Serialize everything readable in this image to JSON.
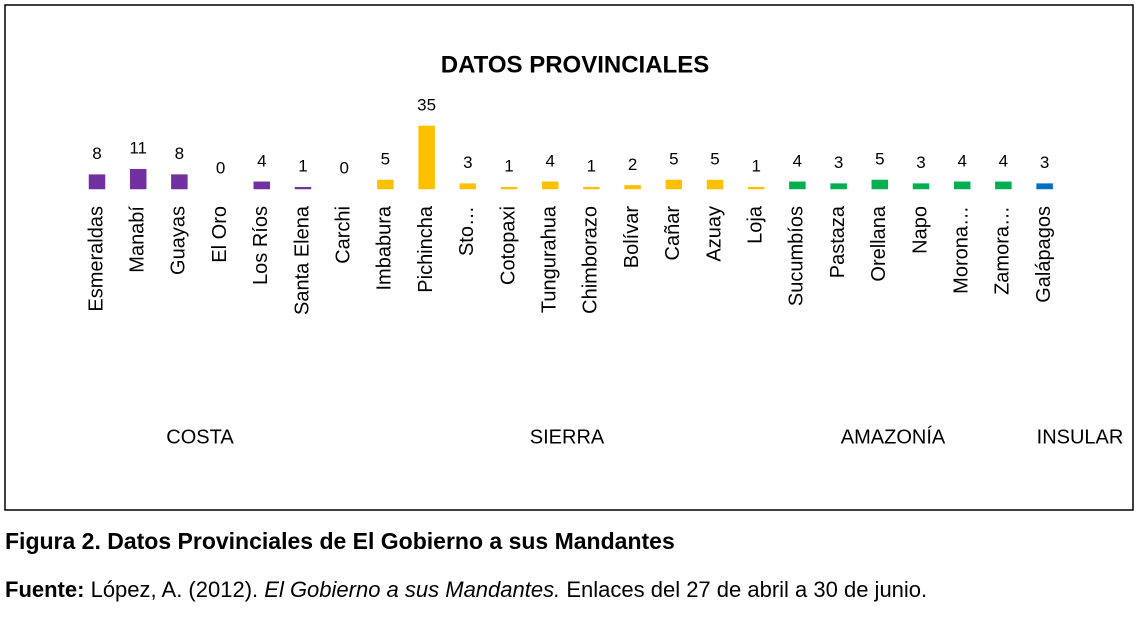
{
  "chart_data": {
    "type": "bar",
    "title": "DATOS PROVINCIALES",
    "categories": [
      "Esmeraldas",
      "Manabí",
      "Guayas",
      "El Oro",
      "Los Ríos",
      "Santa Elena",
      "Carchi",
      "Imbabura",
      "Pichincha",
      "Sto…",
      "Cotopaxi",
      "Tungurahua",
      "Chimborazo",
      "Bolívar",
      "Cañar",
      "Azuay",
      "Loja",
      "Sucumbíos",
      "Pastaza",
      "Orellana",
      "Napo",
      "Morona…",
      "Zamora…",
      "Galápagos"
    ],
    "values": [
      8,
      11,
      8,
      0,
      4,
      1,
      0,
      5,
      35,
      3,
      1,
      4,
      1,
      2,
      5,
      5,
      1,
      4,
      3,
      5,
      3,
      4,
      4,
      3
    ],
    "colors": [
      "#7030a0",
      "#7030a0",
      "#7030a0",
      "#7030a0",
      "#7030a0",
      "#7030a0",
      "#ffc000",
      "#ffc000",
      "#ffc000",
      "#ffc000",
      "#ffc000",
      "#ffc000",
      "#ffc000",
      "#ffc000",
      "#ffc000",
      "#ffc000",
      "#ffc000",
      "#00b050",
      "#00b050",
      "#00b050",
      "#00b050",
      "#00b050",
      "#00b050",
      "#0070c0"
    ],
    "groups": [
      "COSTA",
      "SIERRA",
      "AMAZONÍA",
      "INSULAR"
    ]
  },
  "caption": {
    "figure": "Figura 2. Datos Provinciales de El Gobierno a sus Mandantes",
    "source_label": "Fuente:",
    "source_text": "López, A. (2012).",
    "source_title": "El Gobierno a sus Mandantes.",
    "source_rest": "Enlaces del 27 de abril a 30 de junio."
  }
}
